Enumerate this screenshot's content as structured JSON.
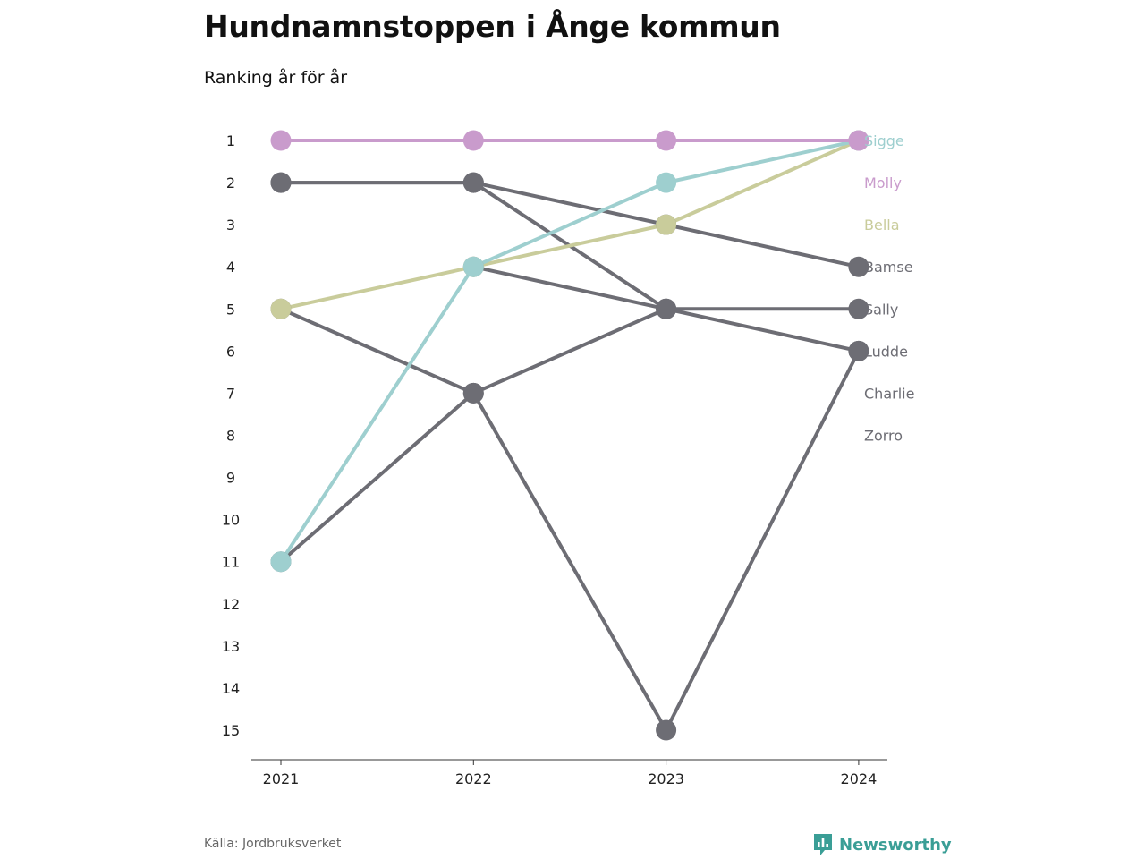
{
  "title": "Hundnamnstoppen i Ånge kommun",
  "subtitle": "Ranking år för år",
  "source": "Källa: Jordbruksverket",
  "brand": {
    "name": "Newsworthy",
    "icon": "bar-chart-badge-icon",
    "color": "#3a9e96"
  },
  "chart_data": {
    "type": "line",
    "title": "Hundnamnstoppen i Ånge kommun",
    "subtitle": "Ranking år för år",
    "x": [
      "2021",
      "2022",
      "2023",
      "2024"
    ],
    "y_ticks": [
      "1",
      "2",
      "3",
      "4",
      "5",
      "6",
      "7",
      "8",
      "9",
      "10",
      "11",
      "12",
      "13",
      "14",
      "15"
    ],
    "ylim": [
      1,
      15
    ],
    "y_inverted": true,
    "grid": false,
    "legend": "end-labels-right",
    "series": [
      {
        "name": "Sigge",
        "values": [
          11,
          4,
          2,
          1
        ],
        "color": "#9ecfcf"
      },
      {
        "name": "Molly",
        "values": [
          1,
          1,
          1,
          1
        ],
        "color": "#c99bcc"
      },
      {
        "name": "Bella",
        "values": [
          5,
          4,
          3,
          1
        ],
        "color": "#c9cc9b"
      },
      {
        "name": "Bamse",
        "values": [
          2,
          2,
          3,
          4
        ],
        "color": "#6d6d74"
      },
      {
        "name": "Sally",
        "values": [
          2,
          2,
          5,
          5
        ],
        "color": "#6d6d74"
      },
      {
        "name": "Ludde",
        "values": [
          5,
          7,
          15,
          6
        ],
        "color": "#6d6d74"
      },
      {
        "name": "Charlie",
        "values": [
          11,
          7,
          5,
          null
        ],
        "color": "#6d6d74"
      },
      {
        "name": "Zorro",
        "values": [
          null,
          4,
          5,
          6
        ],
        "color": "#6d6d74"
      }
    ]
  }
}
